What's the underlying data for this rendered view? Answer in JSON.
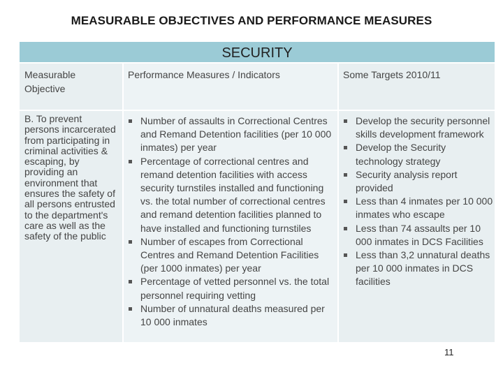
{
  "title": "MEASURABLE OBJECTIVES AND PERFORMANCE MEASURES",
  "section": "SECURITY",
  "headers": {
    "objective": "Measurable Objective",
    "measures": "Performance Measures / Indicators",
    "targets": "Some Targets 2010/11"
  },
  "objective": "B. To prevent persons incarcerated from participating in criminal activities & escaping, by providing an environment that ensures the safety of all persons entrusted to the department's care as well as the safety of the public",
  "measures": [
    "Number of assaults in Correctional Centres and Remand Detention facilities (per 10 000 inmates) per year",
    "Percentage of correctional centres and remand detention facilities with access security turnstiles installed and functioning vs. the total number of correctional centres and remand detention facilities planned to have installed and functioning turnstiles",
    "Number of escapes from Correctional Centres and Remand Detention Facilities (per 1000 inmates) per year",
    "Percentage of vetted personnel vs. the total personnel requiring vetting",
    "Number of unnatural deaths measured per 10 000 inmates"
  ],
  "targets": [
    "Develop the security personnel skills development framework",
    "Develop the Security technology strategy",
    "Security analysis report provided",
    "Less than 4 inmates per 10 000 inmates who escape",
    "Less than 74 assaults per 10 000 inmates in DCS Facilities",
    "Less than 3,2 unnatural deaths per 10 000 inmates in DCS facilities"
  ],
  "page_number": "11"
}
